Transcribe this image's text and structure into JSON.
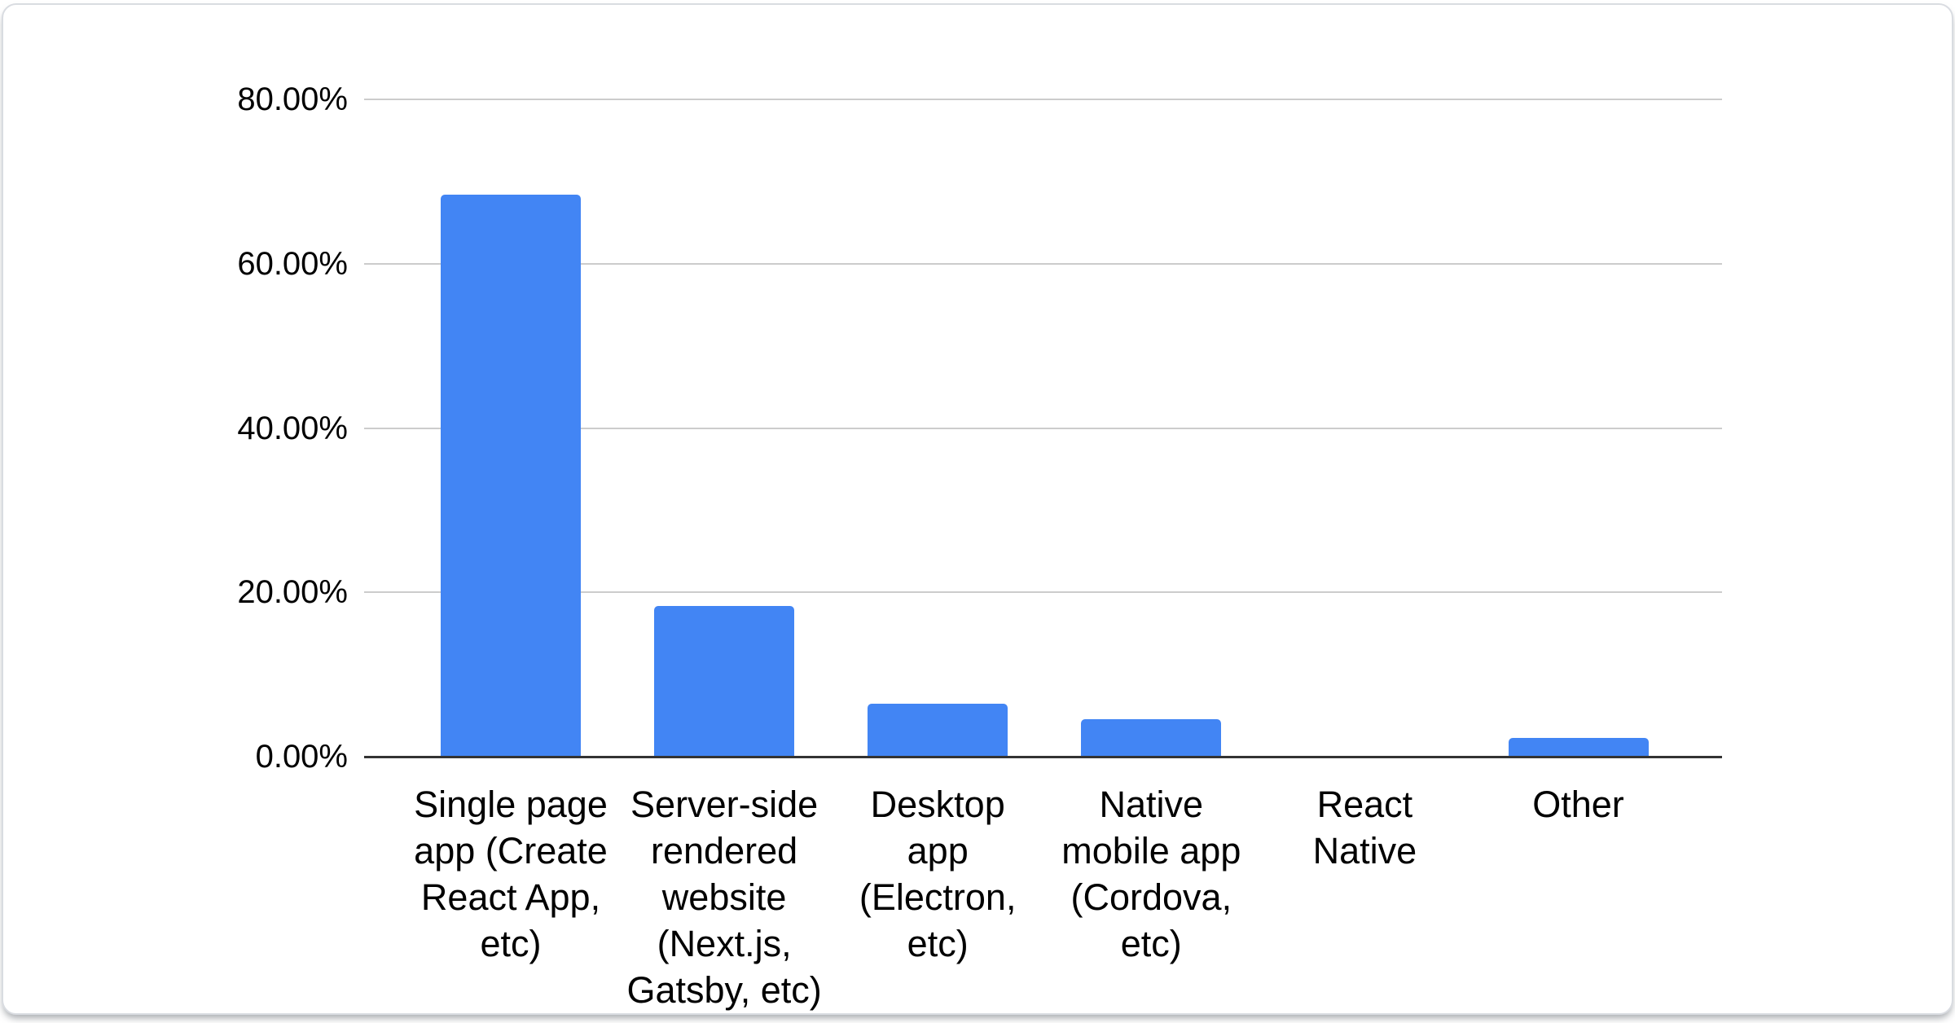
{
  "chart_data": {
    "type": "bar",
    "title": "",
    "xlabel": "",
    "ylabel": "",
    "categories": [
      "Single page app (Create React App, etc)",
      "Server-side rendered website (Next.js, Gatsby, etc)",
      "Desktop app (Electron, etc)",
      "Native mobile app (Cordova, etc)",
      "React Native",
      "Other"
    ],
    "label_lines": [
      [
        "Single page",
        "app (Create",
        "React App,",
        "etc)"
      ],
      [
        "Server-side",
        "rendered",
        "website",
        "(Next.js,",
        "Gatsby, etc)"
      ],
      [
        "Desktop",
        "app",
        "(Electron,",
        "etc)"
      ],
      [
        "Native",
        "mobile app",
        "(Cordova,",
        "etc)"
      ],
      [
        "React",
        "Native"
      ],
      [
        "Other"
      ]
    ],
    "values": [
      68.4,
      18.3,
      6.4,
      4.6,
      0,
      2.3
    ],
    "value_format": "percent",
    "y_ticks": [
      "0.00%",
      "20.00%",
      "40.00%",
      "60.00%",
      "80.00%"
    ],
    "y_tick_values": [
      0,
      20,
      40,
      60,
      80
    ],
    "ylim": [
      0,
      80
    ],
    "grid": true,
    "legend": "none"
  },
  "colors": {
    "bar": "#4285f4",
    "gridline": "#cccccc",
    "zero_axis": "#333333",
    "text": "#000000",
    "card_background": "#ffffff",
    "card_border": "#d9dce1"
  }
}
